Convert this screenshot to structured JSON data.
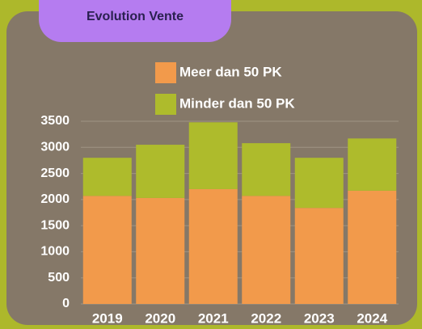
{
  "chart_data": {
    "type": "stacked_bar",
    "title": "Evolution Vente",
    "categories": [
      "2019",
      "2020",
      "2021",
      "2022",
      "2023",
      "2024"
    ],
    "series": [
      {
        "name": "Meer dan 50 PK",
        "color": "#f29a4b",
        "values": [
          2070,
          2030,
          2200,
          2070,
          1840,
          2170
        ]
      },
      {
        "name": "Minder dan 50 PK",
        "color": "#aebb2c",
        "values": [
          730,
          1020,
          1280,
          1010,
          960,
          1000
        ]
      }
    ],
    "ylim": [
      0,
      3500
    ],
    "yticks": [
      0,
      500,
      1000,
      1500,
      2000,
      2500,
      3000,
      3500
    ],
    "grid": true
  }
}
